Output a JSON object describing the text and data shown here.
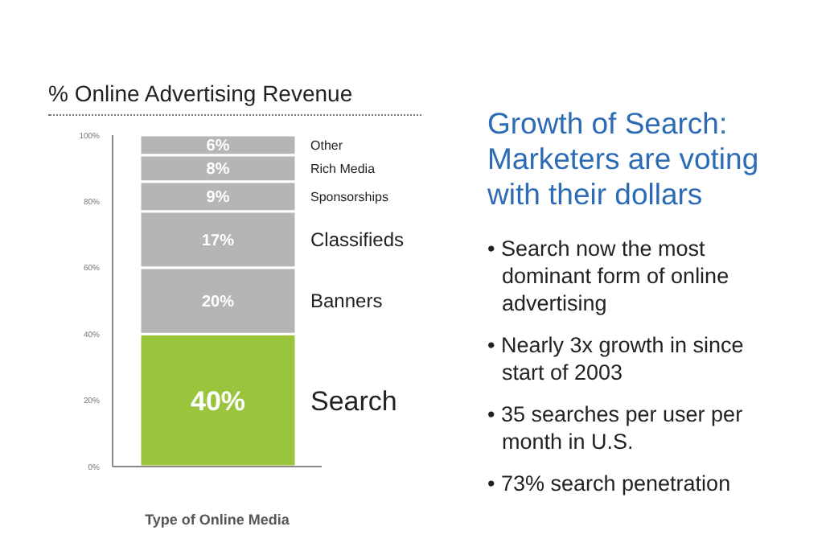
{
  "chart_data": {
    "type": "bar",
    "stacked": true,
    "title": "% Online Advertising Revenue",
    "xlabel": "Type of Online Media",
    "categories": [
      null
    ],
    "series": [
      {
        "name": "Search",
        "color": "#99c43c",
        "values": [
          40
        ],
        "value_labels": [
          "40%"
        ]
      },
      {
        "name": "Banners",
        "color": "#b5b5b5",
        "values": [
          20
        ],
        "value_labels": [
          "20%"
        ]
      },
      {
        "name": "Classifieds",
        "color": "#b5b5b5",
        "values": [
          17
        ],
        "value_labels": [
          "17%"
        ]
      },
      {
        "name": "Sponsorships",
        "color": "#b5b5b5",
        "values": [
          9
        ],
        "value_labels": [
          "9%"
        ]
      },
      {
        "name": "Rich Media",
        "color": "#b5b5b5",
        "values": [
          8
        ],
        "value_labels": [
          "8%"
        ]
      },
      {
        "name": "Other",
        "color": "#b5b5b5",
        "values": [
          6
        ],
        "value_labels": [
          "6%"
        ]
      }
    ],
    "ylim": [
      0,
      100
    ],
    "yticks": [
      {
        "value": 0,
        "label": "0%"
      },
      {
        "value": 20,
        "label": "20%"
      },
      {
        "value": 40,
        "label": "40%"
      },
      {
        "value": 60,
        "label": "60%"
      },
      {
        "value": 80,
        "label": "80%"
      },
      {
        "value": 100,
        "label": "100%"
      }
    ],
    "grid": false,
    "legend": false,
    "annotations": [
      "Growth of Search: Marketers are voting with their dollars",
      "• Search now the most dominant form of online advertising",
      "• Nearly 3x growth in since start of 2003",
      "• 35 searches per user per month in U.S.",
      "• 73% search penetration"
    ]
  }
}
